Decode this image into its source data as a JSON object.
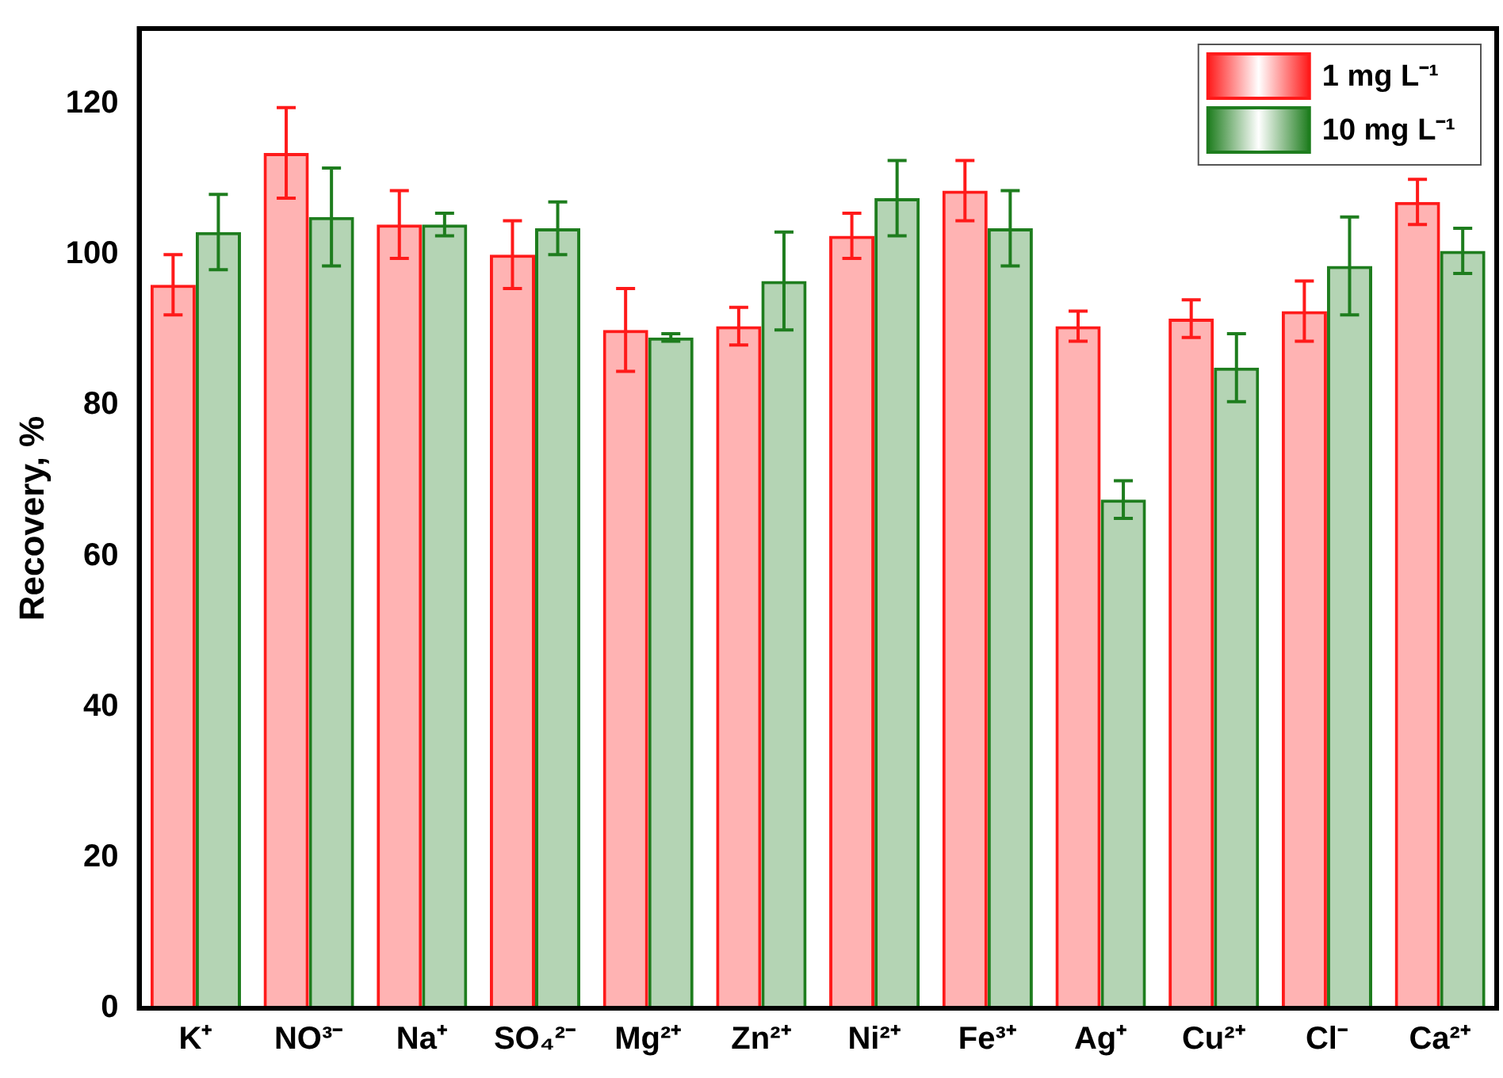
{
  "chart_data": {
    "type": "bar",
    "ylabel": "Recovery, %",
    "categories": [
      "K⁺",
      "NO³⁻",
      "Na⁺",
      "SO₄²⁻",
      "Mg²⁺",
      "Zn²⁺",
      "Ni²⁺",
      "Fe³⁺",
      "Ag⁺",
      "Cu²⁺",
      "Cl⁻",
      "Ca²⁺"
    ],
    "series": [
      {
        "name": "1 mg L⁻¹",
        "color": "#ff1a1a",
        "values": [
          96,
          113.5,
          104,
          100,
          90,
          90.5,
          102.5,
          108.5,
          90.5,
          91.5,
          92.5,
          107
        ],
        "errors": [
          4,
          6,
          4.5,
          4.5,
          5.5,
          2.5,
          3,
          4,
          2,
          2.5,
          4,
          3
        ]
      },
      {
        "name": "10 mg L⁻¹",
        "color": "#1e7d1e",
        "values": [
          103,
          105,
          104,
          103.5,
          89,
          96.5,
          107.5,
          103.5,
          67.5,
          85,
          98.5,
          100.5
        ],
        "errors": [
          5,
          6.5,
          1.5,
          3.5,
          0.5,
          6.5,
          5,
          5,
          2.5,
          4.5,
          6.5,
          3
        ]
      }
    ],
    "ylim": [
      0,
      130
    ],
    "yticks": [
      0,
      20,
      40,
      60,
      80,
      100,
      120
    ],
    "grid": false,
    "legend": "top right"
  }
}
